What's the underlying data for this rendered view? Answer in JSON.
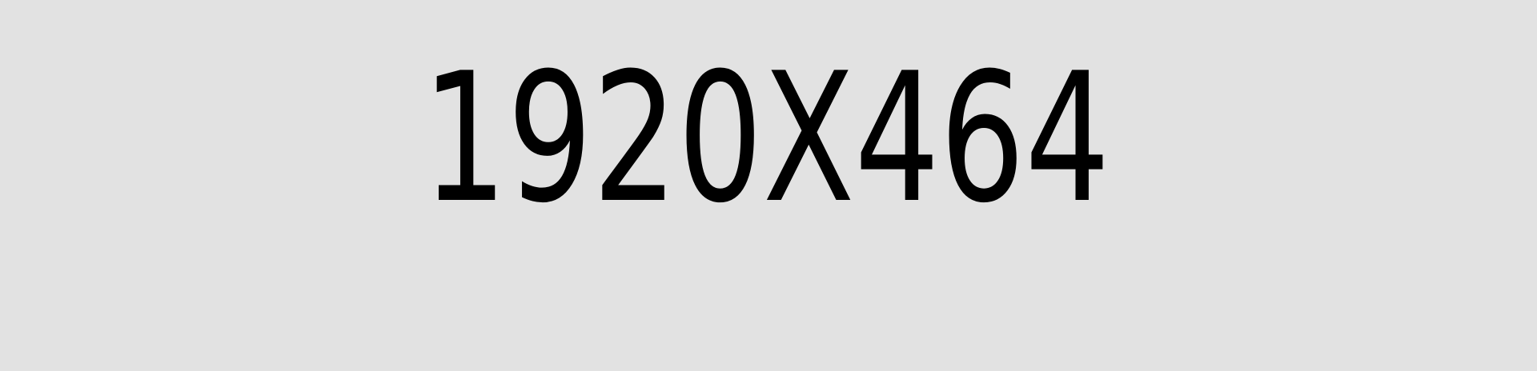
{
  "placeholder": {
    "dimensions_text": "1920X464",
    "background_color": "#e2e2e2",
    "text_color": "#000000"
  }
}
